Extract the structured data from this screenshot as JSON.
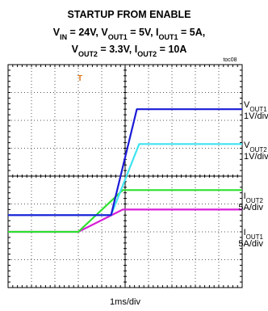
{
  "chart_data": {
    "type": "line",
    "title": "STARTUP FROM ENABLE",
    "subtitle_line1": [
      {
        "t": "V",
        "s": false
      },
      {
        "t": "IN",
        "s": true
      },
      {
        "t": " = 24V, V",
        "s": false
      },
      {
        "t": "OUT1",
        "s": true
      },
      {
        "t": " = 5V, I",
        "s": false
      },
      {
        "t": "OUT1",
        "s": true
      },
      {
        "t": " = 5A,",
        "s": false
      }
    ],
    "subtitle_line2": [
      {
        "t": "V",
        "s": false
      },
      {
        "t": "OUT2",
        "s": true
      },
      {
        "t": " = 3.3V, I",
        "s": false
      },
      {
        "t": "OUT2",
        "s": true
      },
      {
        "t": " =  10A",
        "s": false
      }
    ],
    "figure_code": "toc08",
    "xlabel": "1ms/div",
    "trigger_marker": "T",
    "grid": {
      "x_divisions": 10,
      "y_divisions": 8
    },
    "series": [
      {
        "key": "vout1",
        "color": "#1a1ad6",
        "label": [
          {
            "t": "V",
            "s": false
          },
          {
            "t": "OUT1",
            "s": true
          }
        ],
        "scale": "1V/div",
        "points": [
          [
            0,
            5.4
          ],
          [
            4.4,
            5.4
          ],
          [
            5.5,
            1.6
          ],
          [
            10,
            1.6
          ]
        ]
      },
      {
        "key": "vout2",
        "color": "#3fe3f0",
        "label": [
          {
            "t": "V",
            "s": false
          },
          {
            "t": "OUT2",
            "s": true
          }
        ],
        "scale": "1V/div",
        "points": [
          [
            0,
            5.4
          ],
          [
            4.4,
            5.4
          ],
          [
            5.6,
            2.85
          ],
          [
            10,
            2.85
          ]
        ]
      },
      {
        "key": "iout2",
        "color": "#2de02d",
        "label": [
          {
            "t": "I",
            "s": false
          },
          {
            "t": "OUT2",
            "s": true
          }
        ],
        "scale": "5A/div",
        "points": [
          [
            0,
            6.0
          ],
          [
            3.0,
            6.0
          ],
          [
            4.9,
            4.5
          ],
          [
            10,
            4.5
          ]
        ]
      },
      {
        "key": "iout1",
        "color": "#d81fd8",
        "label": [
          {
            "t": "I",
            "s": false
          },
          {
            "t": "OUT1",
            "s": true
          }
        ],
        "scale": "5A/div",
        "points": [
          [
            0,
            6.0
          ],
          [
            3.0,
            6.0
          ],
          [
            4.9,
            5.2
          ],
          [
            10,
            5.2
          ]
        ]
      }
    ]
  }
}
